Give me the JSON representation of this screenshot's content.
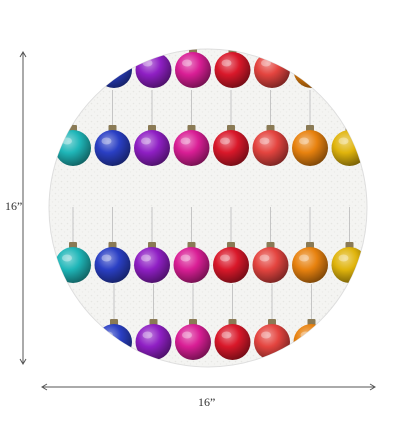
{
  "dimensions": {
    "height_label": "16”",
    "width_label": "16”"
  },
  "product": {
    "background_color": "#f3f3f1",
    "ornament_colors": [
      "#1fb6b8",
      "#2a3fc4",
      "#8f1fc4",
      "#d91e95",
      "#d9182a",
      "#e4443f",
      "#e8820f",
      "#e0b40c"
    ],
    "rows": [
      {
        "colors": [
          1,
          2,
          3,
          4,
          5,
          6
        ],
        "style": "hanging-ornament-top"
      },
      {
        "colors": [
          0,
          1,
          2,
          3,
          4,
          5,
          6,
          7
        ],
        "style": "hanging-ornament-middle"
      },
      {
        "colors": [
          0,
          1,
          2,
          3,
          4,
          5,
          6,
          7
        ],
        "style": "hanging-ornament-middle"
      },
      {
        "colors": [
          1,
          2,
          3,
          4,
          5,
          6
        ],
        "style": "hanging-ornament-bottom"
      }
    ]
  },
  "icons": {
    "vertical_arrow": "vertical-dimension-arrow-icon",
    "horizontal_arrow": "horizontal-dimension-arrow-icon"
  }
}
